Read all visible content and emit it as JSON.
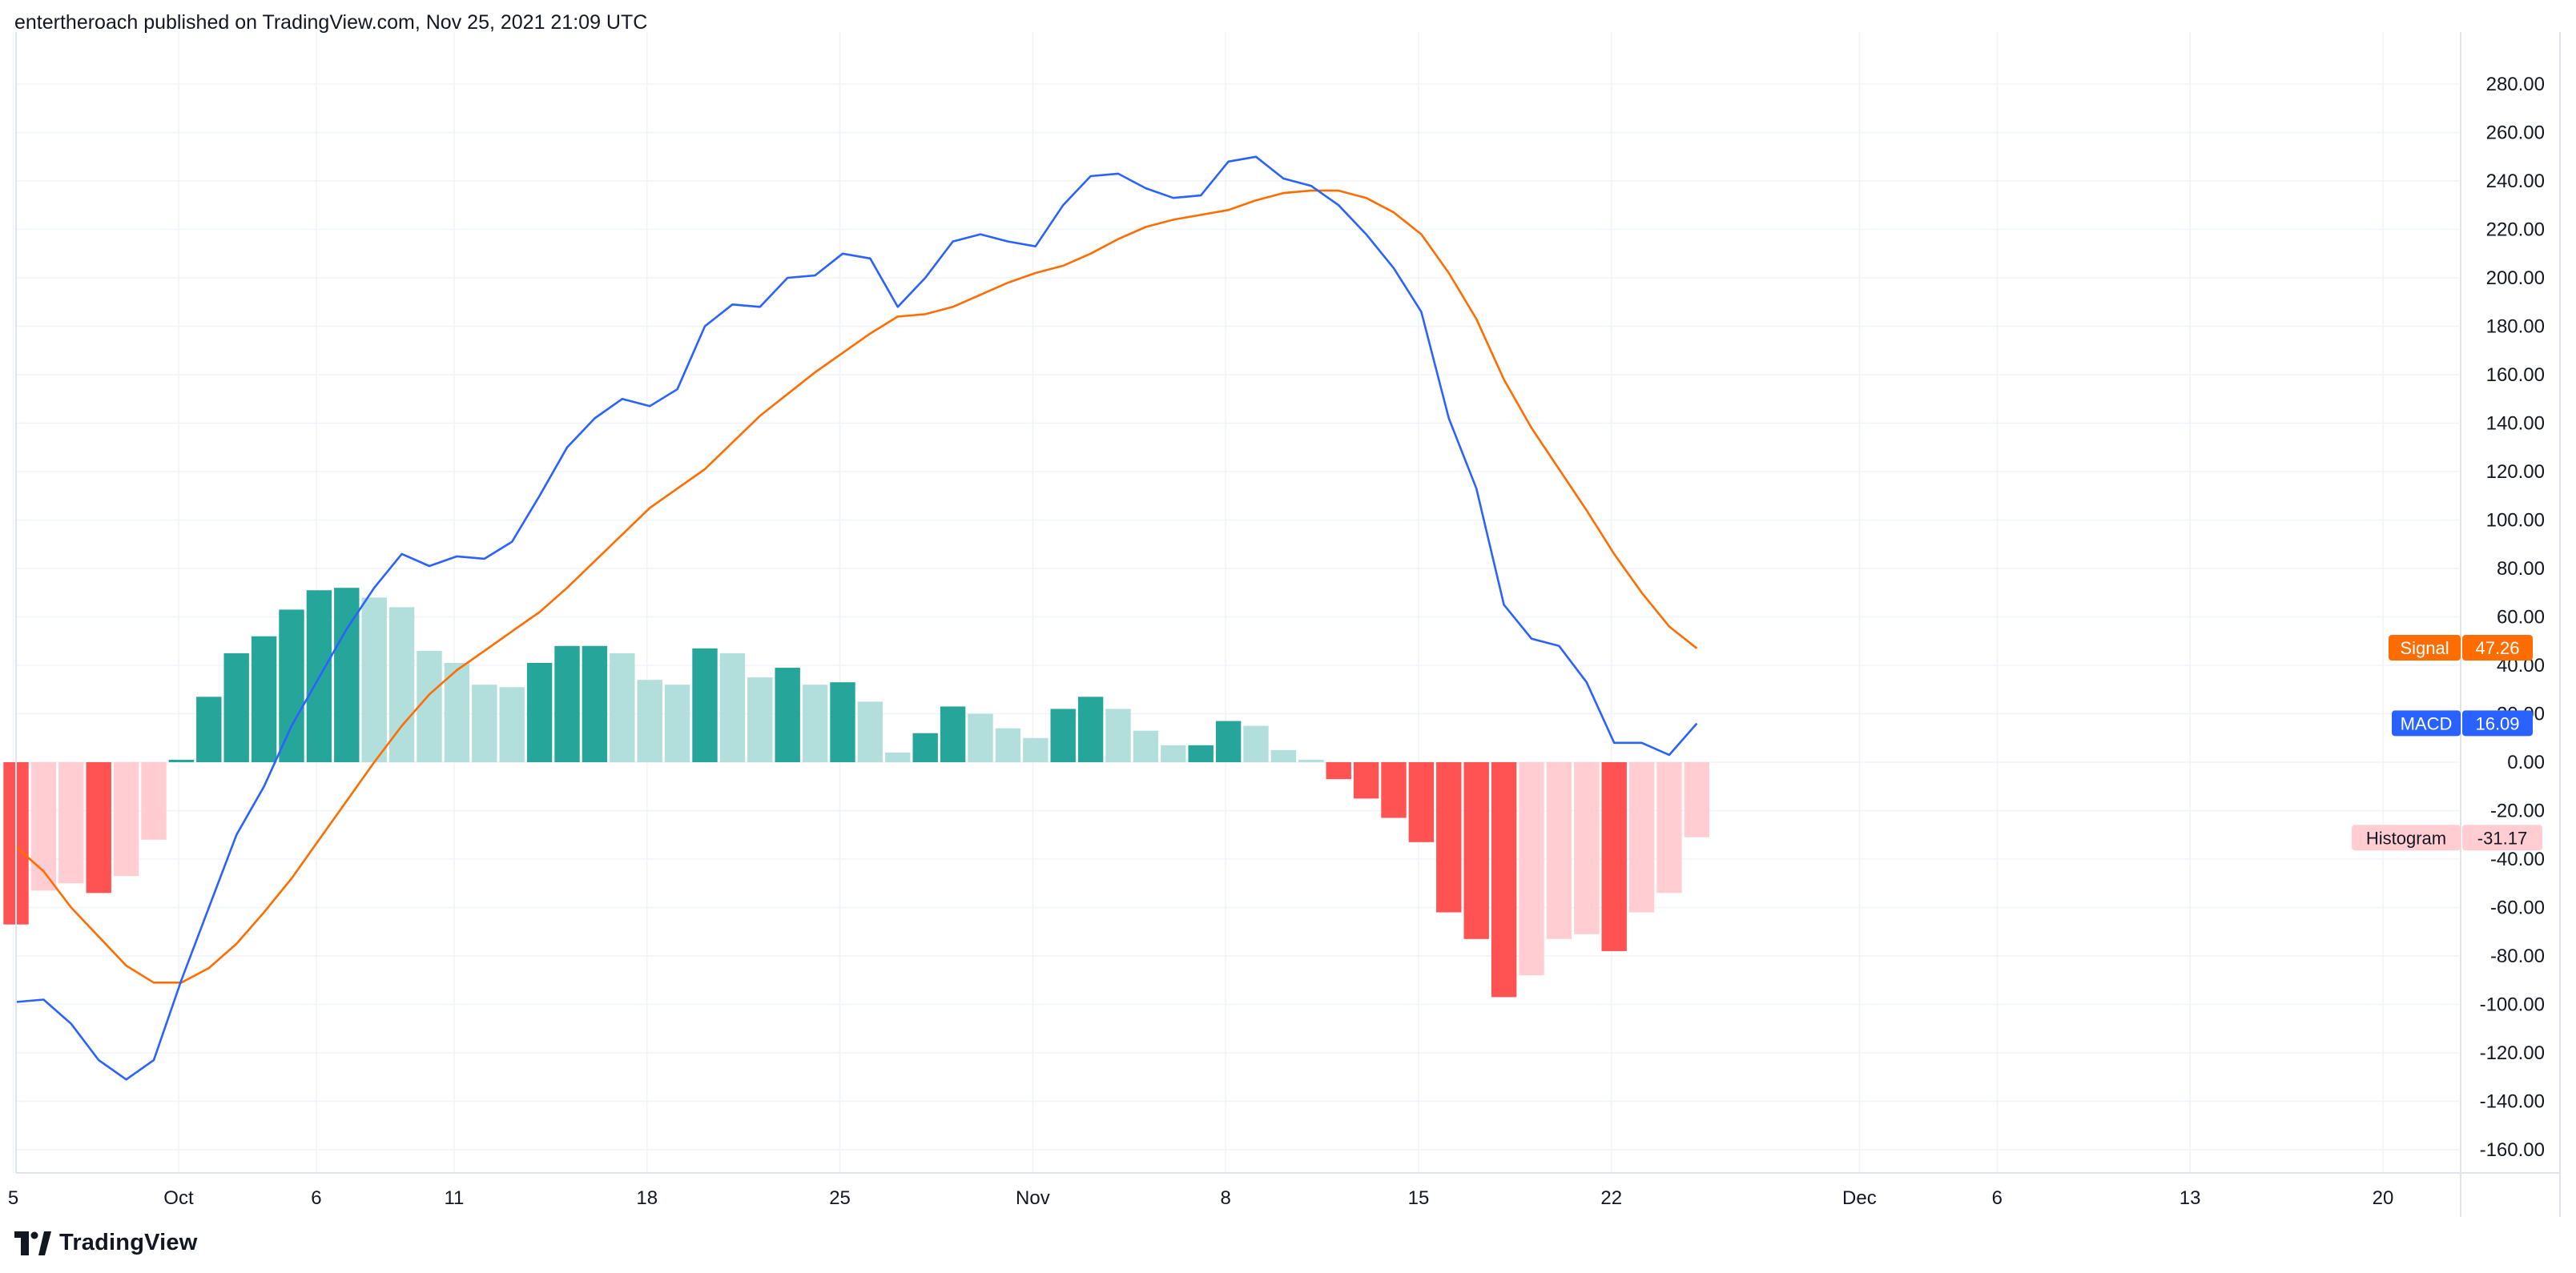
{
  "header": {
    "text": "entertheroach published on TradingView.com, Nov 25, 2021 21:09 UTC"
  },
  "footer": {
    "brand": "TradingView",
    "logo_icon": "tradingview-logo-icon"
  },
  "colors": {
    "macd": "#2962ff",
    "signal": "#ff6d00",
    "hist_pos_strong": "#26a69a",
    "hist_pos_weak": "#b2dfdb",
    "hist_neg_strong": "#ff5252",
    "hist_neg_weak": "#ffcdd2",
    "grid": "#f0f3fa"
  },
  "chart_data": {
    "type": "line",
    "title": "",
    "ylim": [
      -170,
      290
    ],
    "grid": true,
    "y_ticks": [
      "280.00",
      "260.00",
      "240.00",
      "220.00",
      "200.00",
      "180.00",
      "160.00",
      "140.00",
      "120.00",
      "100.00",
      "80.00",
      "60.00",
      "40.00",
      "20.00",
      "0.00",
      "-20.00",
      "-40.00",
      "-60.00",
      "-80.00",
      "-100.00",
      "-120.00",
      "-140.00",
      "-160.00"
    ],
    "x_ticks": [
      {
        "label": "5",
        "index": -0.1
      },
      {
        "label": "Oct",
        "index": 5.9
      },
      {
        "label": "6",
        "index": 10.9
      },
      {
        "label": "11",
        "index": 15.9
      },
      {
        "label": "18",
        "index": 22.9
      },
      {
        "label": "25",
        "index": 29.9
      },
      {
        "label": "Nov",
        "index": 36.9
      },
      {
        "label": "8",
        "index": 43.9
      },
      {
        "label": "15",
        "index": 50.9
      },
      {
        "label": "22",
        "index": 57.9
      },
      {
        "label": "Dec",
        "index": 66.9
      },
      {
        "label": "6",
        "index": 71.9
      },
      {
        "label": "13",
        "index": 78.9
      },
      {
        "label": "20",
        "index": 85.9
      }
    ],
    "series": [
      {
        "name": "MACD",
        "last_value": "16.09",
        "values": [
          -99,
          -98,
          -108,
          -123,
          -131,
          -123,
          -90,
          -60,
          -30,
          -10,
          15,
          35,
          55,
          72,
          86,
          81,
          85,
          84,
          91,
          110,
          130,
          142,
          150,
          147,
          154,
          180,
          189,
          188,
          200,
          201,
          210,
          208,
          188,
          200,
          215,
          218,
          215,
          213,
          230,
          242,
          243,
          237,
          233,
          234,
          248,
          250,
          241,
          238,
          230,
          218,
          204,
          186,
          142,
          113,
          65,
          51,
          48,
          33,
          8,
          8,
          3,
          16
        ]
      },
      {
        "name": "Signal",
        "last_value": "47.26",
        "values": [
          -35,
          -45,
          -60,
          -72,
          -84,
          -91,
          -91,
          -85,
          -75,
          -62,
          -48,
          -32,
          -16,
          0,
          15,
          28,
          38,
          46,
          54,
          62,
          72,
          83,
          94,
          105,
          113,
          121,
          132,
          143,
          152,
          161,
          169,
          177,
          184,
          185,
          188,
          193,
          198,
          202,
          205,
          210,
          216,
          221,
          224,
          226,
          228,
          232,
          235,
          236,
          236,
          233,
          227,
          218,
          202,
          183,
          158,
          138,
          121,
          104,
          86,
          70,
          56,
          47
        ]
      },
      {
        "name": "Histogram",
        "type": "bar",
        "last_value": "-31.17",
        "values": [
          -67,
          -53,
          -50,
          -54,
          -47,
          -32,
          1,
          27,
          45,
          52,
          63,
          71,
          72,
          68,
          64,
          46,
          41,
          32,
          31,
          41,
          48,
          48,
          45,
          34,
          32,
          47,
          45,
          35,
          39,
          32,
          33,
          25,
          4,
          12,
          23,
          20,
          14,
          10,
          22,
          27,
          22,
          13,
          7,
          7,
          17,
          15,
          5,
          1,
          -7,
          -15,
          -23,
          -33,
          -62,
          -73,
          -97,
          -88,
          -73,
          -71,
          -78,
          -62,
          -54,
          -31
        ]
      }
    ]
  }
}
